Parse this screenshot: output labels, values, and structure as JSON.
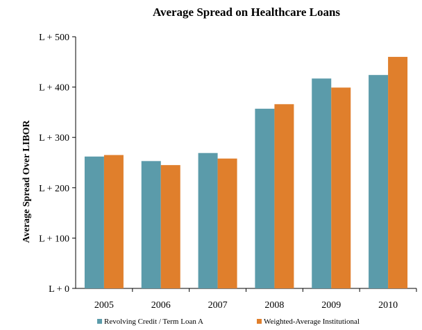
{
  "chart_data": {
    "type": "bar",
    "title": "Average Spread on Healthcare Loans",
    "xlabel": "",
    "ylabel": "Average Spread Over LIBOR",
    "categories": [
      "2005",
      "2006",
      "2007",
      "2008",
      "2009",
      "2010"
    ],
    "series": [
      {
        "name": "Revolving Credit / Term Loan A",
        "color": "#5B9BAA",
        "values": [
          262,
          253,
          269,
          357,
          417,
          424
        ]
      },
      {
        "name": "Weighted-Average Institutional",
        "color": "#E07F2C",
        "values": [
          265,
          245,
          258,
          366,
          399,
          460
        ]
      }
    ],
    "ylim": [
      0,
      500
    ],
    "yticks": [
      0,
      100,
      200,
      300,
      400,
      500
    ],
    "ytick_labels": [
      "L + 0",
      "L + 100",
      "L + 200",
      "L + 300",
      "L + 400",
      "L + 500"
    ],
    "grid": false,
    "legend_position": "bottom"
  }
}
